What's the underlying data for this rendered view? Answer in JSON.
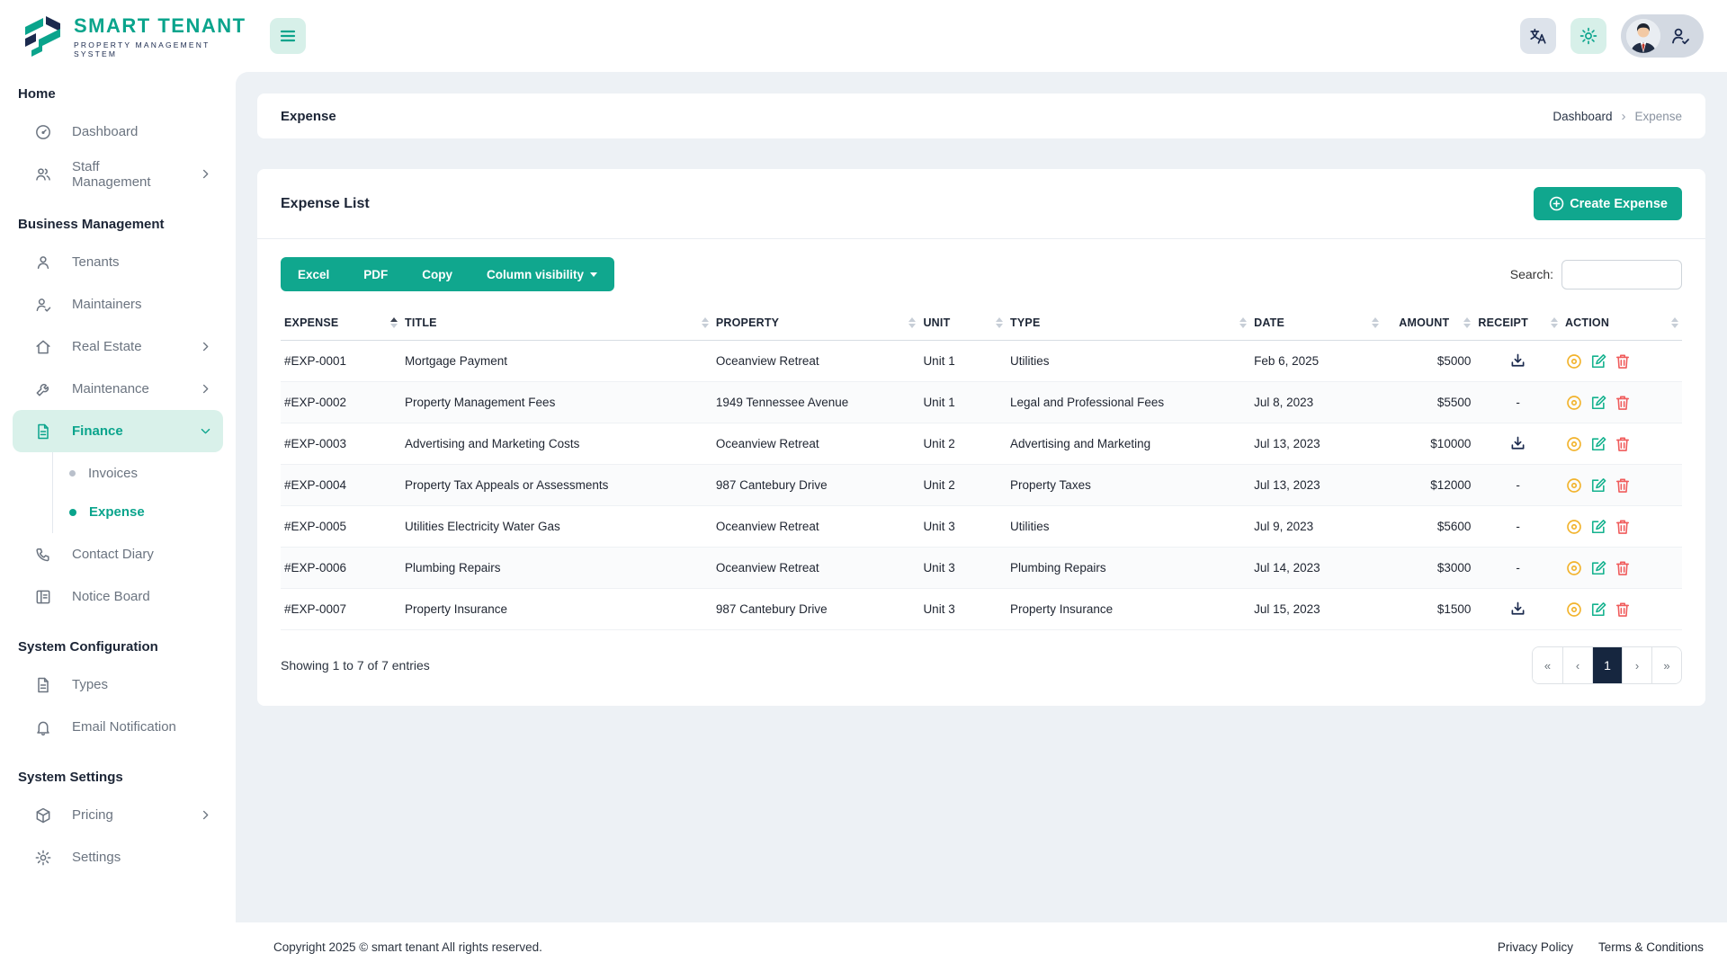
{
  "brand": {
    "name": "SMART TENANT",
    "tagline": "PROPERTY MANAGEMENT SYSTEM"
  },
  "topbar": {
    "hamburger_icon": "hamburger",
    "translate_icon": "translate",
    "settings_icon": "gear",
    "profile_icons": [
      "avatar",
      "user-check"
    ]
  },
  "sidebar": {
    "sections": [
      {
        "header": "Home",
        "items": [
          {
            "label": "Dashboard",
            "icon": "dashboard"
          },
          {
            "label": "Staff Management",
            "icon": "users",
            "chevron": "right"
          }
        ]
      },
      {
        "header": "Business Management",
        "items": [
          {
            "label": "Tenants",
            "icon": "user"
          },
          {
            "label": "Maintainers",
            "icon": "user-check"
          },
          {
            "label": "Real Estate",
            "icon": "home",
            "chevron": "right"
          },
          {
            "label": "Maintenance",
            "icon": "wrench",
            "chevron": "right"
          },
          {
            "label": "Finance",
            "icon": "file-text",
            "chevron": "down",
            "active": true,
            "children": [
              {
                "label": "Invoices",
                "active": false
              },
              {
                "label": "Expense",
                "active": true
              }
            ]
          },
          {
            "label": "Contact Diary",
            "icon": "phone"
          },
          {
            "label": "Notice Board",
            "icon": "board"
          }
        ]
      },
      {
        "header": "System Configuration",
        "items": [
          {
            "label": "Types",
            "icon": "file-text"
          },
          {
            "label": "Email Notification",
            "icon": "bell"
          }
        ]
      },
      {
        "header": "System Settings",
        "items": [
          {
            "label": "Pricing",
            "icon": "package",
            "chevron": "right"
          },
          {
            "label": "Settings",
            "icon": "gear"
          }
        ]
      }
    ]
  },
  "breadcrumb": {
    "title": "Expense",
    "items": [
      "Dashboard",
      "Expense"
    ],
    "separator": "›"
  },
  "card": {
    "title": "Expense List",
    "create_button_label": "Create Expense",
    "create_button_icon": "plus-circle",
    "export_buttons": [
      "Excel",
      "PDF",
      "Copy"
    ],
    "column_visibility_label": "Column visibility",
    "search_label": "Search:",
    "search_value": "",
    "table": {
      "columns": [
        {
          "label": "EXPENSE",
          "sort": "asc"
        },
        {
          "label": "TITLE",
          "sort": "none"
        },
        {
          "label": "PROPERTY",
          "sort": "none"
        },
        {
          "label": "UNIT",
          "sort": "none"
        },
        {
          "label": "TYPE",
          "sort": "none"
        },
        {
          "label": "DATE",
          "sort": "none"
        },
        {
          "label": "AMOUNT",
          "sort": "none",
          "align": "right"
        },
        {
          "label": "RECEIPT",
          "sort": "none"
        },
        {
          "label": "ACTION",
          "sort": "none"
        }
      ],
      "rows": [
        {
          "expense": "#EXP-0001",
          "title": "Mortgage Payment",
          "property": "Oceanview Retreat",
          "unit": "Unit 1",
          "type": "Utilities",
          "date": "Feb 6, 2025",
          "amount": "$5000",
          "receipt": true
        },
        {
          "expense": "#EXP-0002",
          "title": "Property Management Fees",
          "property": "1949 Tennessee Avenue",
          "unit": "Unit 1",
          "type": "Legal and Professional Fees",
          "date": "Jul 8, 2023",
          "amount": "$5500",
          "receipt": false
        },
        {
          "expense": "#EXP-0003",
          "title": "Advertising and Marketing Costs",
          "property": "Oceanview Retreat",
          "unit": "Unit 2",
          "type": "Advertising and Marketing",
          "date": "Jul 13, 2023",
          "amount": "$10000",
          "receipt": true
        },
        {
          "expense": "#EXP-0004",
          "title": "Property Tax Appeals or Assessments",
          "property": "987 Cantebury Drive",
          "unit": "Unit 2",
          "type": "Property Taxes",
          "date": "Jul 13, 2023",
          "amount": "$12000",
          "receipt": false
        },
        {
          "expense": "#EXP-0005",
          "title": "Utilities Electricity Water Gas",
          "property": "Oceanview Retreat",
          "unit": "Unit 3",
          "type": "Utilities",
          "date": "Jul 9, 2023",
          "amount": "$5600",
          "receipt": false
        },
        {
          "expense": "#EXP-0006",
          "title": "Plumbing Repairs",
          "property": "Oceanview Retreat",
          "unit": "Unit 3",
          "type": "Plumbing Repairs",
          "date": "Jul 14, 2023",
          "amount": "$3000",
          "receipt": false
        },
        {
          "expense": "#EXP-0007",
          "title": "Property Insurance",
          "property": "987 Cantebury Drive",
          "unit": "Unit 3",
          "type": "Property Insurance",
          "date": "Jul 15, 2023",
          "amount": "$1500",
          "receipt": true
        }
      ],
      "receipt_icon": "download",
      "receipt_empty": "-",
      "action_icons": [
        "view",
        "edit",
        "delete"
      ]
    },
    "summary": "Showing 1 to 7 of 7 entries",
    "pagination": {
      "buttons": [
        "«",
        "‹",
        "1",
        "›",
        "»"
      ],
      "active_index": 2
    }
  },
  "footer": {
    "copyright": "Copyright 2025 © smart tenant All rights reserved.",
    "links": [
      "Privacy Policy",
      "Terms & Conditions"
    ]
  },
  "colors": {
    "accent": "#10a78e",
    "accent_light": "#d7f0e9",
    "navy": "#1b2a4e",
    "main_bg": "#edf1f5",
    "view_icon": "#f2b32c",
    "edit_icon": "#14b28e",
    "delete_icon": "#f05c5c",
    "pagination_active": "#16263f"
  }
}
